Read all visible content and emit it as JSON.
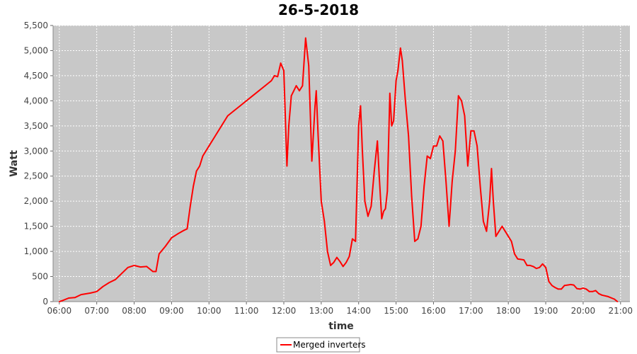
{
  "chart_data": {
    "type": "line",
    "title": "26-5-2018",
    "xlabel": "time",
    "ylabel": "Watt",
    "ylim": [
      0,
      5500
    ],
    "xlim": [
      "05:50",
      "21:15"
    ],
    "grid": true,
    "legend_position": "bottom-center",
    "y_ticks": [
      "0",
      "500",
      "1,000",
      "1,500",
      "2,000",
      "2,500",
      "3,000",
      "3,500",
      "4,000",
      "4,500",
      "5,000",
      "5,500"
    ],
    "x_ticks": [
      "06:00",
      "07:00",
      "08:00",
      "09:00",
      "10:00",
      "11:00",
      "12:00",
      "13:00",
      "14:00",
      "15:00",
      "16:00",
      "17:00",
      "18:00",
      "19:00",
      "20:00",
      "21:00"
    ],
    "series": [
      {
        "name": "Merged inverters",
        "color": "#ff0000",
        "points": [
          [
            "06:00",
            0
          ],
          [
            "06:05",
            20
          ],
          [
            "06:15",
            70
          ],
          [
            "06:25",
            80
          ],
          [
            "06:35",
            140
          ],
          [
            "06:50",
            170
          ],
          [
            "07:00",
            200
          ],
          [
            "07:10",
            300
          ],
          [
            "07:20",
            380
          ],
          [
            "07:30",
            440
          ],
          [
            "07:40",
            560
          ],
          [
            "07:50",
            680
          ],
          [
            "08:00",
            720
          ],
          [
            "08:10",
            690
          ],
          [
            "08:20",
            700
          ],
          [
            "08:30",
            600
          ],
          [
            "08:35",
            600
          ],
          [
            "08:40",
            950
          ],
          [
            "08:50",
            1100
          ],
          [
            "09:00",
            1270
          ],
          [
            "09:10",
            1350
          ],
          [
            "09:20",
            1420
          ],
          [
            "09:25",
            1450
          ],
          [
            "09:30",
            1900
          ],
          [
            "09:35",
            2300
          ],
          [
            "09:40",
            2600
          ],
          [
            "09:45",
            2700
          ],
          [
            "09:50",
            2900
          ],
          [
            "10:00",
            3100
          ],
          [
            "10:10",
            3300
          ],
          [
            "10:20",
            3500
          ],
          [
            "10:30",
            3700
          ],
          [
            "10:40",
            3800
          ],
          [
            "10:50",
            3900
          ],
          [
            "11:00",
            4000
          ],
          [
            "11:10",
            4100
          ],
          [
            "11:20",
            4200
          ],
          [
            "11:30",
            4300
          ],
          [
            "11:40",
            4400
          ],
          [
            "11:45",
            4500
          ],
          [
            "11:50",
            4480
          ],
          [
            "11:55",
            4750
          ],
          [
            "12:00",
            4600
          ],
          [
            "12:05",
            2700
          ],
          [
            "12:08",
            3500
          ],
          [
            "12:12",
            4100
          ],
          [
            "12:20",
            4300
          ],
          [
            "12:25",
            4200
          ],
          [
            "12:30",
            4300
          ],
          [
            "12:35",
            5250
          ],
          [
            "12:40",
            4700
          ],
          [
            "12:45",
            2800
          ],
          [
            "12:50",
            3900
          ],
          [
            "12:52",
            4200
          ],
          [
            "12:55",
            3300
          ],
          [
            "13:00",
            2000
          ],
          [
            "13:05",
            1600
          ],
          [
            "13:10",
            1000
          ],
          [
            "13:15",
            720
          ],
          [
            "13:20",
            780
          ],
          [
            "13:25",
            880
          ],
          [
            "13:30",
            800
          ],
          [
            "13:35",
            700
          ],
          [
            "13:40",
            780
          ],
          [
            "13:45",
            900
          ],
          [
            "13:50",
            1250
          ],
          [
            "13:55",
            1200
          ],
          [
            "14:00",
            3500
          ],
          [
            "14:03",
            3900
          ],
          [
            "14:06",
            3000
          ],
          [
            "14:10",
            2000
          ],
          [
            "14:15",
            1700
          ],
          [
            "14:20",
            1900
          ],
          [
            "14:25",
            2600
          ],
          [
            "14:30",
            3200
          ],
          [
            "14:33",
            2500
          ],
          [
            "14:37",
            1650
          ],
          [
            "14:40",
            1800
          ],
          [
            "14:43",
            1850
          ],
          [
            "14:46",
            2200
          ],
          [
            "14:50",
            4150
          ],
          [
            "14:53",
            3500
          ],
          [
            "14:56",
            3600
          ],
          [
            "15:00",
            4400
          ],
          [
            "15:03",
            4600
          ],
          [
            "15:07",
            5050
          ],
          [
            "15:10",
            4800
          ],
          [
            "15:15",
            4000
          ],
          [
            "15:20",
            3300
          ],
          [
            "15:25",
            2100
          ],
          [
            "15:30",
            1200
          ],
          [
            "15:35",
            1250
          ],
          [
            "15:40",
            1500
          ],
          [
            "15:45",
            2300
          ],
          [
            "15:50",
            2900
          ],
          [
            "15:55",
            2850
          ],
          [
            "16:00",
            3100
          ],
          [
            "16:05",
            3100
          ],
          [
            "16:10",
            3300
          ],
          [
            "16:15",
            3200
          ],
          [
            "16:20",
            2400
          ],
          [
            "16:25",
            1500
          ],
          [
            "16:30",
            2400
          ],
          [
            "16:35",
            3000
          ],
          [
            "16:40",
            4100
          ],
          [
            "16:45",
            4000
          ],
          [
            "16:50",
            3700
          ],
          [
            "16:55",
            2700
          ],
          [
            "17:00",
            3400
          ],
          [
            "17:05",
            3400
          ],
          [
            "17:10",
            3100
          ],
          [
            "17:15",
            2300
          ],
          [
            "17:20",
            1600
          ],
          [
            "17:25",
            1400
          ],
          [
            "17:30",
            2000
          ],
          [
            "17:33",
            2650
          ],
          [
            "17:36",
            2000
          ],
          [
            "17:40",
            1300
          ],
          [
            "17:45",
            1400
          ],
          [
            "17:50",
            1500
          ],
          [
            "17:55",
            1400
          ],
          [
            "18:00",
            1300
          ],
          [
            "18:05",
            1200
          ],
          [
            "18:10",
            950
          ],
          [
            "18:15",
            850
          ],
          [
            "18:20",
            840
          ],
          [
            "18:25",
            830
          ],
          [
            "18:30",
            720
          ],
          [
            "18:35",
            720
          ],
          [
            "18:40",
            700
          ],
          [
            "18:45",
            660
          ],
          [
            "18:50",
            680
          ],
          [
            "18:55",
            750
          ],
          [
            "19:00",
            680
          ],
          [
            "19:05",
            400
          ],
          [
            "19:10",
            320
          ],
          [
            "19:15",
            280
          ],
          [
            "19:20",
            250
          ],
          [
            "19:25",
            250
          ],
          [
            "19:30",
            320
          ],
          [
            "19:35",
            330
          ],
          [
            "19:40",
            340
          ],
          [
            "19:45",
            330
          ],
          [
            "19:50",
            260
          ],
          [
            "19:55",
            250
          ],
          [
            "20:00",
            270
          ],
          [
            "20:05",
            250
          ],
          [
            "20:10",
            200
          ],
          [
            "20:15",
            200
          ],
          [
            "20:20",
            220
          ],
          [
            "20:25",
            160
          ],
          [
            "20:30",
            130
          ],
          [
            "20:40",
            100
          ],
          [
            "20:50",
            50
          ],
          [
            "20:55",
            0
          ]
        ]
      }
    ]
  }
}
